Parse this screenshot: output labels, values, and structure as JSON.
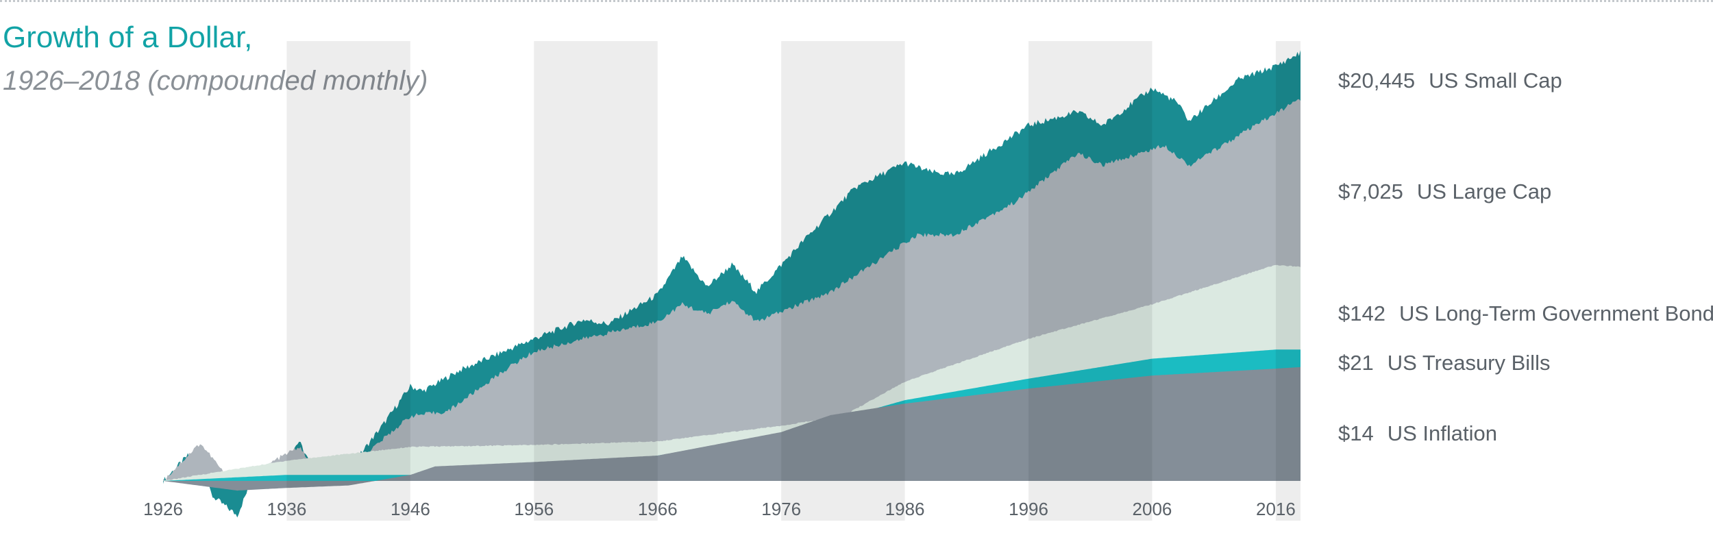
{
  "header": {
    "title": "Growth of a Dollar,",
    "subtitle": "1926–2018 (compounded monthly)"
  },
  "colors": {
    "small_cap": "#1a8c92",
    "large_cap": "#aeb5bc",
    "lt_bonds": "#dbe9e1",
    "tbills": "#1bbcc2",
    "inflation": "#848e98",
    "title": "#12a3a6",
    "label": "#5a6168"
  },
  "chart_data": {
    "type": "area",
    "x_ticks": [
      "1926",
      "1936",
      "1946",
      "1956",
      "1966",
      "1976",
      "1986",
      "1996",
      "2006",
      "2016"
    ],
    "xlim": [
      1926,
      2018
    ],
    "y_scale": "log",
    "ylim": [
      0.3,
      40000
    ],
    "grid": false,
    "series": [
      {
        "name": "US Small Cap",
        "label_value": "$20,445",
        "ending_value": 20445,
        "x": [
          1926,
          1928,
          1929,
          1930,
          1932,
          1933,
          1935,
          1937,
          1938,
          1941,
          1944,
          1946,
          1947,
          1950,
          1956,
          1960,
          1962,
          1966,
          1968,
          1970,
          1972,
          1974,
          1978,
          1982,
          1986,
          1988,
          1990,
          1996,
          2000,
          2002,
          2006,
          2008,
          2009,
          2013,
          2016,
          2018
        ],
        "values": [
          1,
          1.8,
          1.3,
          0.7,
          0.45,
          0.9,
          1.2,
          2.5,
          1.4,
          1.3,
          4,
          9,
          8,
          13,
          27,
          42,
          38,
          75,
          180,
          90,
          150,
          80,
          280,
          900,
          1600,
          1300,
          1200,
          3800,
          5200,
          3800,
          9000,
          6500,
          4200,
          11000,
          15000,
          20445
        ]
      },
      {
        "name": "US Large Cap",
        "label_value": "$7,025",
        "ending_value": 7025,
        "x": [
          1926,
          1928,
          1929,
          1930,
          1932,
          1933,
          1935,
          1937,
          1938,
          1942,
          1946,
          1949,
          1954,
          1956,
          1960,
          1966,
          1968,
          1970,
          1972,
          1974,
          1980,
          1987,
          1990,
          1995,
          2000,
          2002,
          2007,
          2009,
          2013,
          2016,
          2018
        ],
        "values": [
          1,
          1.8,
          2.4,
          1.7,
          0.8,
          1.1,
          1.6,
          2.2,
          1.5,
          1.7,
          4.5,
          5,
          14,
          20,
          27,
          40,
          60,
          48,
          65,
          40,
          80,
          300,
          300,
          650,
          2000,
          1500,
          2400,
          1500,
          3000,
          5000,
          7025
        ]
      },
      {
        "name": "US Long-Term Government Bonds",
        "label_value": "$142",
        "ending_value": 142,
        "x": [
          1926,
          1936,
          1946,
          1956,
          1966,
          1976,
          1981,
          1986,
          1996,
          2006,
          2016,
          2018
        ],
        "values": [
          1,
          1.6,
          2.2,
          2.3,
          2.5,
          3.6,
          4.5,
          10,
          27,
          60,
          150,
          142
        ]
      },
      {
        "name": "US Treasury Bills",
        "label_value": "$21",
        "ending_value": 21,
        "x": [
          1926,
          1936,
          1946,
          1956,
          1966,
          1976,
          1986,
          1996,
          2006,
          2016,
          2018
        ],
        "values": [
          1,
          1.15,
          1.15,
          1.3,
          1.8,
          2.9,
          6.5,
          10.7,
          17,
          21,
          21
        ]
      },
      {
        "name": "US Inflation",
        "label_value": "$14",
        "ending_value": 14,
        "x": [
          1926,
          1932,
          1936,
          1941,
          1946,
          1948,
          1956,
          1966,
          1976,
          1980,
          1986,
          1996,
          2006,
          2016,
          2018
        ],
        "values": [
          1,
          0.8,
          0.85,
          0.9,
          1.15,
          1.4,
          1.55,
          1.8,
          3.1,
          4.6,
          6,
          8.5,
          11.5,
          13.5,
          14
        ]
      }
    ]
  }
}
